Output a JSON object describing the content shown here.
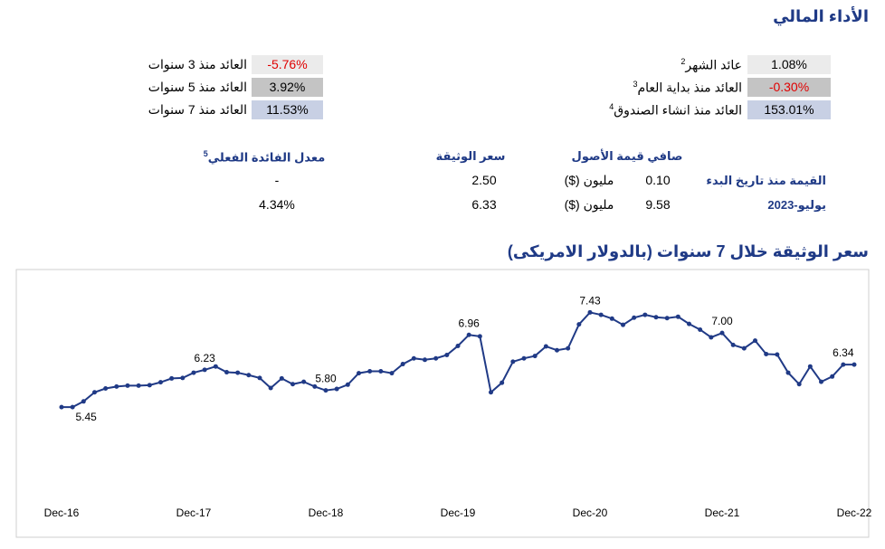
{
  "header": {
    "title": "الأداء المالي"
  },
  "returns": {
    "right": [
      {
        "label": "عائد الشهر",
        "note": "2",
        "value": "1.08%",
        "color": "#000000",
        "background": "#ebebeb"
      },
      {
        "label": "العائد منذ بداية العام",
        "note": "3",
        "value": "-0.30%",
        "color": "#e00000",
        "background": "#c4c4c4"
      },
      {
        "label": "العائد منذ انشاء الصندوق",
        "note": "4",
        "value": "153.01%",
        "color": "#000000",
        "background": "#c8d0e4"
      }
    ],
    "left": [
      {
        "label": "العائد منذ 3 سنوات",
        "value": "-5.76%",
        "color": "#e00000",
        "background": "#ebebeb"
      },
      {
        "label": "العائد منذ 5 سنوات",
        "value": "3.92%",
        "color": "#000000",
        "background": "#c4c4c4"
      },
      {
        "label": "العائد منذ 7 سنوات",
        "value": "11.53%",
        "color": "#000000",
        "background": "#c8d0e4"
      }
    ]
  },
  "summary": {
    "headers": [
      {
        "text": "صافي قيمة الأصول"
      },
      {
        "text": "سعر الوثيقة"
      },
      {
        "text": "معدل الفائدة الفعلي",
        "note": "5"
      }
    ],
    "rows": [
      {
        "label": "القيمة منذ تاريخ البدء",
        "cells": [
          "0.10",
          "مليون ($)",
          "2.50",
          "-"
        ]
      },
      {
        "label": "يوليو-2023",
        "cells": [
          "9.58",
          "مليون ($)",
          "6.33",
          "4.34%"
        ]
      }
    ]
  },
  "chart_data": {
    "type": "line",
    "title": "سعر الوثيقة خلال 7 سنوات (بالدولار الامريكى)",
    "categories": [
      "Dec-16",
      null,
      null,
      null,
      null,
      null,
      null,
      null,
      null,
      null,
      null,
      null,
      "Dec-17",
      null,
      null,
      null,
      null,
      null,
      null,
      null,
      null,
      null,
      null,
      null,
      "Dec-18",
      null,
      null,
      null,
      null,
      null,
      null,
      null,
      null,
      null,
      null,
      null,
      "Dec-19",
      null,
      null,
      null,
      null,
      null,
      null,
      null,
      null,
      null,
      null,
      null,
      "Dec-20",
      null,
      null,
      null,
      null,
      null,
      null,
      null,
      null,
      null,
      null,
      null,
      "Dec-21",
      null,
      null,
      null,
      null,
      null,
      null,
      null,
      null,
      null,
      null,
      null,
      "Dec-22"
    ],
    "values": [
      5.45,
      5.45,
      5.57,
      5.76,
      5.84,
      5.88,
      5.9,
      5.9,
      5.91,
      5.97,
      6.05,
      6.06,
      6.17,
      6.23,
      6.3,
      6.18,
      6.17,
      6.12,
      6.06,
      5.85,
      6.05,
      5.93,
      5.98,
      5.88,
      5.8,
      5.83,
      5.92,
      6.16,
      6.2,
      6.2,
      6.16,
      6.35,
      6.47,
      6.44,
      6.47,
      6.54,
      6.73,
      6.96,
      6.93,
      5.76,
      5.96,
      6.4,
      6.47,
      6.52,
      6.72,
      6.64,
      6.68,
      7.18,
      7.43,
      7.38,
      7.3,
      7.17,
      7.32,
      7.38,
      7.33,
      7.31,
      7.34,
      7.19,
      7.07,
      6.91,
      7.0,
      6.75,
      6.68,
      6.84,
      6.56,
      6.55,
      6.17,
      5.93,
      6.3,
      5.98,
      6.09,
      6.34,
      6.34
    ],
    "value_labels": [
      null,
      "5.45",
      null,
      null,
      null,
      null,
      null,
      null,
      null,
      null,
      null,
      null,
      null,
      "6.23",
      null,
      null,
      null,
      null,
      null,
      null,
      null,
      null,
      null,
      null,
      "5.80",
      null,
      null,
      null,
      null,
      null,
      null,
      null,
      null,
      null,
      null,
      null,
      null,
      "6.96",
      null,
      null,
      null,
      null,
      null,
      null,
      null,
      null,
      null,
      null,
      "7.43",
      null,
      null,
      null,
      null,
      null,
      null,
      null,
      null,
      null,
      null,
      null,
      "7.00",
      null,
      null,
      null,
      null,
      null,
      null,
      null,
      null,
      null,
      null,
      "6.34",
      null
    ],
    "color": "#203a86",
    "ylim": [
      3.6,
      8.1
    ]
  }
}
